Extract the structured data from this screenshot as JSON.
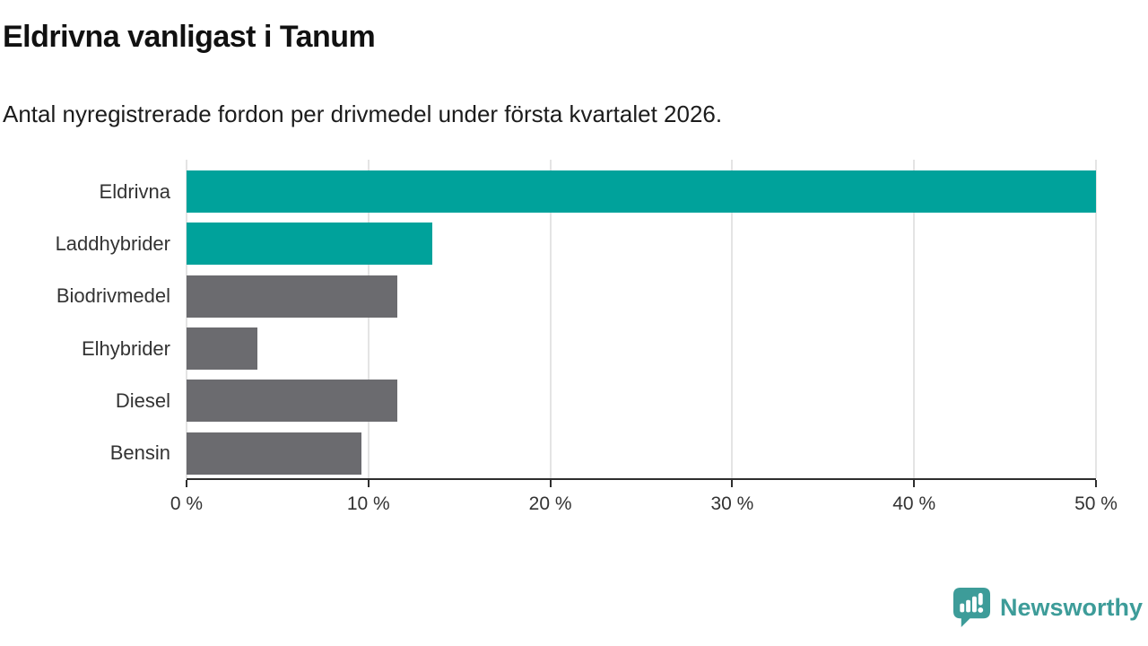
{
  "header": {
    "title": "Eldrivna vanligast i Tanum",
    "subtitle": "Antal nyregistrerade fordon per drivmedel under första kvartalet 2026."
  },
  "chart_data": {
    "type": "bar",
    "orientation": "horizontal",
    "title": "Eldrivna vanligast i Tanum",
    "subtitle": "Antal nyregistrerade fordon per drivmedel under första kvartalet 2026.",
    "categories": [
      "Eldrivna",
      "Laddhybrider",
      "Biodrivmedel",
      "Elhybrider",
      "Diesel",
      "Bensin"
    ],
    "values": [
      50.0,
      13.5,
      11.6,
      3.9,
      11.6,
      9.6
    ],
    "unit": "%",
    "xlabel": "",
    "ylabel": "",
    "xlim": [
      0,
      50
    ],
    "x_ticks": [
      0,
      10,
      20,
      30,
      40,
      50
    ],
    "x_tick_labels": [
      "0 %",
      "10 %",
      "20 %",
      "30 %",
      "40 %",
      "50 %"
    ],
    "bar_colors": [
      "#00a29b",
      "#00a29b",
      "#6b6b6f",
      "#6b6b6f",
      "#6b6b6f",
      "#6b6b6f"
    ],
    "highlight_color": "#00a29b",
    "default_color": "#6b6b6f",
    "grid": true,
    "legend": false
  },
  "footer": {
    "brand": "Newsworthy",
    "brand_color": "#3d9c99"
  }
}
